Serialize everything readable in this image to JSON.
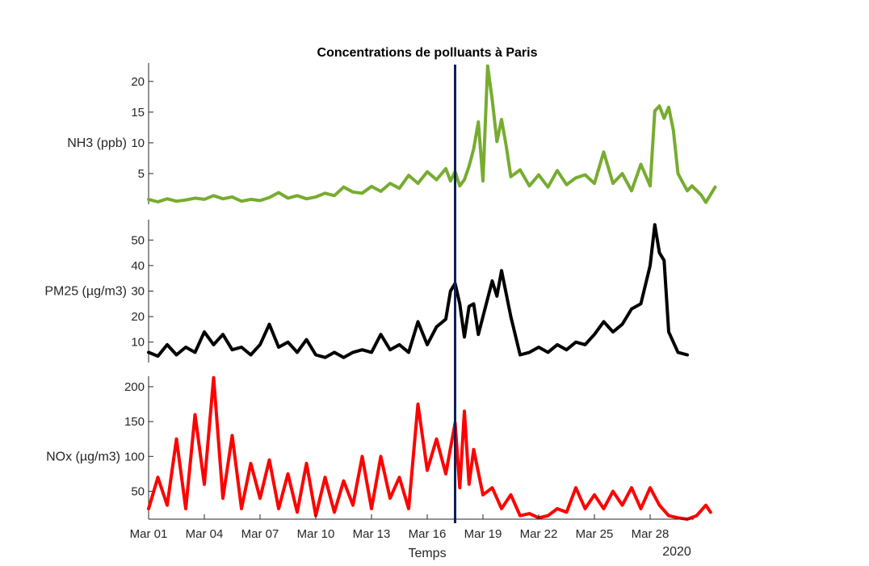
{
  "chart_data": {
    "type": "line",
    "title": "Concentrations de polluants à Paris",
    "xlabel": "Temps",
    "year_label": "2020",
    "x_ticks": [
      "Mar 01",
      "Mar 04",
      "Mar 07",
      "Mar 10",
      "Mar 13",
      "Mar 16",
      "Mar 19",
      "Mar 22",
      "Mar 25",
      "Mar 28"
    ],
    "x_range": [
      "2020-03-01",
      "2020-03-31"
    ],
    "event_date": "2020-03-17T12:00",
    "event_color": "#0b2155",
    "panels": [
      {
        "ylabel": "NH3 (ppb)",
        "color": "#77ac30",
        "ylim": [
          0,
          23
        ],
        "yticks": [
          5,
          10,
          15,
          20
        ],
        "series": [
          {
            "x": "2020-03-01T00:00",
            "y": 0.8
          },
          {
            "x": "2020-03-01T12:00",
            "y": 0.4
          },
          {
            "x": "2020-03-02T00:00",
            "y": 0.9
          },
          {
            "x": "2020-03-02T12:00",
            "y": 0.5
          },
          {
            "x": "2020-03-03T00:00",
            "y": 0.7
          },
          {
            "x": "2020-03-03T12:00",
            "y": 1.0
          },
          {
            "x": "2020-03-04T00:00",
            "y": 0.8
          },
          {
            "x": "2020-03-04T12:00",
            "y": 1.4
          },
          {
            "x": "2020-03-05T00:00",
            "y": 0.9
          },
          {
            "x": "2020-03-05T12:00",
            "y": 1.2
          },
          {
            "x": "2020-03-06T00:00",
            "y": 0.5
          },
          {
            "x": "2020-03-06T12:00",
            "y": 0.8
          },
          {
            "x": "2020-03-07T00:00",
            "y": 0.6
          },
          {
            "x": "2020-03-07T12:00",
            "y": 1.1
          },
          {
            "x": "2020-03-08T00:00",
            "y": 1.9
          },
          {
            "x": "2020-03-08T12:00",
            "y": 1.0
          },
          {
            "x": "2020-03-09T00:00",
            "y": 1.4
          },
          {
            "x": "2020-03-09T12:00",
            "y": 0.9
          },
          {
            "x": "2020-03-10T00:00",
            "y": 1.2
          },
          {
            "x": "2020-03-10T12:00",
            "y": 1.8
          },
          {
            "x": "2020-03-11T00:00",
            "y": 1.4
          },
          {
            "x": "2020-03-11T12:00",
            "y": 2.8
          },
          {
            "x": "2020-03-12T00:00",
            "y": 2.0
          },
          {
            "x": "2020-03-12T12:00",
            "y": 1.8
          },
          {
            "x": "2020-03-13T00:00",
            "y": 2.9
          },
          {
            "x": "2020-03-13T12:00",
            "y": 2.1
          },
          {
            "x": "2020-03-14T00:00",
            "y": 3.4
          },
          {
            "x": "2020-03-14T12:00",
            "y": 2.6
          },
          {
            "x": "2020-03-15T00:00",
            "y": 4.7
          },
          {
            "x": "2020-03-15T12:00",
            "y": 3.4
          },
          {
            "x": "2020-03-16T00:00",
            "y": 5.3
          },
          {
            "x": "2020-03-16T12:00",
            "y": 4.0
          },
          {
            "x": "2020-03-17T00:00",
            "y": 5.8
          },
          {
            "x": "2020-03-17T06:00",
            "y": 3.8
          },
          {
            "x": "2020-03-17T12:00",
            "y": 5.3
          },
          {
            "x": "2020-03-17T18:00",
            "y": 3.0
          },
          {
            "x": "2020-03-18T00:00",
            "y": 4.0
          },
          {
            "x": "2020-03-18T06:00",
            "y": 6.2
          },
          {
            "x": "2020-03-18T12:00",
            "y": 9.0
          },
          {
            "x": "2020-03-18T18:00",
            "y": 13.4
          },
          {
            "x": "2020-03-19T00:00",
            "y": 3.8
          },
          {
            "x": "2020-03-19T06:00",
            "y": 22.5
          },
          {
            "x": "2020-03-19T12:00",
            "y": 17.0
          },
          {
            "x": "2020-03-19T18:00",
            "y": 10.2
          },
          {
            "x": "2020-03-20T00:00",
            "y": 13.8
          },
          {
            "x": "2020-03-20T06:00",
            "y": 9.5
          },
          {
            "x": "2020-03-20T12:00",
            "y": 4.5
          },
          {
            "x": "2020-03-21T00:00",
            "y": 5.6
          },
          {
            "x": "2020-03-21T12:00",
            "y": 3.0
          },
          {
            "x": "2020-03-22T00:00",
            "y": 4.8
          },
          {
            "x": "2020-03-22T12:00",
            "y": 2.8
          },
          {
            "x": "2020-03-23T00:00",
            "y": 5.5
          },
          {
            "x": "2020-03-23T12:00",
            "y": 3.2
          },
          {
            "x": "2020-03-24T00:00",
            "y": 4.3
          },
          {
            "x": "2020-03-24T12:00",
            "y": 4.8
          },
          {
            "x": "2020-03-25T00:00",
            "y": 3.4
          },
          {
            "x": "2020-03-25T12:00",
            "y": 8.5
          },
          {
            "x": "2020-03-26T00:00",
            "y": 3.4
          },
          {
            "x": "2020-03-26T12:00",
            "y": 5.0
          },
          {
            "x": "2020-03-27T00:00",
            "y": 2.2
          },
          {
            "x": "2020-03-27T12:00",
            "y": 6.5
          },
          {
            "x": "2020-03-28T00:00",
            "y": 3.0
          },
          {
            "x": "2020-03-28T06:00",
            "y": 15.2
          },
          {
            "x": "2020-03-28T12:00",
            "y": 16.0
          },
          {
            "x": "2020-03-28T18:00",
            "y": 14.0
          },
          {
            "x": "2020-03-29T00:00",
            "y": 15.8
          },
          {
            "x": "2020-03-29T06:00",
            "y": 12.0
          },
          {
            "x": "2020-03-29T12:00",
            "y": 5.0
          },
          {
            "x": "2020-03-30T00:00",
            "y": 2.2
          },
          {
            "x": "2020-03-30T06:00",
            "y": 3.0
          },
          {
            "x": "2020-03-30T18:00",
            "y": 1.5
          },
          {
            "x": "2020-03-31T00:00",
            "y": 0.3
          },
          {
            "x": "2020-03-31T12:00",
            "y": 2.8
          }
        ]
      },
      {
        "ylabel": "PM25 (µg/m3)",
        "color": "#000000",
        "ylim": [
          2,
          58
        ],
        "yticks": [
          10,
          20,
          30,
          40,
          50
        ],
        "series": [
          {
            "x": "2020-03-01T00:00",
            "y": 6
          },
          {
            "x": "2020-03-01T12:00",
            "y": 4.5
          },
          {
            "x": "2020-03-02T00:00",
            "y": 9
          },
          {
            "x": "2020-03-02T12:00",
            "y": 5
          },
          {
            "x": "2020-03-03T00:00",
            "y": 8
          },
          {
            "x": "2020-03-03T12:00",
            "y": 6
          },
          {
            "x": "2020-03-04T00:00",
            "y": 14
          },
          {
            "x": "2020-03-04T12:00",
            "y": 9
          },
          {
            "x": "2020-03-05T00:00",
            "y": 13
          },
          {
            "x": "2020-03-05T12:00",
            "y": 7
          },
          {
            "x": "2020-03-06T00:00",
            "y": 8
          },
          {
            "x": "2020-03-06T12:00",
            "y": 5
          },
          {
            "x": "2020-03-07T00:00",
            "y": 9
          },
          {
            "x": "2020-03-07T12:00",
            "y": 17
          },
          {
            "x": "2020-03-08T00:00",
            "y": 8
          },
          {
            "x": "2020-03-08T12:00",
            "y": 10
          },
          {
            "x": "2020-03-09T00:00",
            "y": 6
          },
          {
            "x": "2020-03-09T12:00",
            "y": 11
          },
          {
            "x": "2020-03-10T00:00",
            "y": 5
          },
          {
            "x": "2020-03-10T12:00",
            "y": 4
          },
          {
            "x": "2020-03-11T00:00",
            "y": 6
          },
          {
            "x": "2020-03-11T12:00",
            "y": 4
          },
          {
            "x": "2020-03-12T00:00",
            "y": 6
          },
          {
            "x": "2020-03-12T12:00",
            "y": 7
          },
          {
            "x": "2020-03-13T00:00",
            "y": 6
          },
          {
            "x": "2020-03-13T12:00",
            "y": 13
          },
          {
            "x": "2020-03-14T00:00",
            "y": 7
          },
          {
            "x": "2020-03-14T12:00",
            "y": 9
          },
          {
            "x": "2020-03-15T00:00",
            "y": 6
          },
          {
            "x": "2020-03-15T12:00",
            "y": 18
          },
          {
            "x": "2020-03-16T00:00",
            "y": 9
          },
          {
            "x": "2020-03-16T12:00",
            "y": 16
          },
          {
            "x": "2020-03-17T00:00",
            "y": 19
          },
          {
            "x": "2020-03-17T06:00",
            "y": 30
          },
          {
            "x": "2020-03-17T12:00",
            "y": 33
          },
          {
            "x": "2020-03-17T18:00",
            "y": 25
          },
          {
            "x": "2020-03-18T00:00",
            "y": 12
          },
          {
            "x": "2020-03-18T06:00",
            "y": 24
          },
          {
            "x": "2020-03-18T12:00",
            "y": 25
          },
          {
            "x": "2020-03-18T18:00",
            "y": 13
          },
          {
            "x": "2020-03-19T00:00",
            "y": 20
          },
          {
            "x": "2020-03-19T12:00",
            "y": 34
          },
          {
            "x": "2020-03-19T18:00",
            "y": 28
          },
          {
            "x": "2020-03-20T00:00",
            "y": 38
          },
          {
            "x": "2020-03-20T12:00",
            "y": 20
          },
          {
            "x": "2020-03-21T00:00",
            "y": 5
          },
          {
            "x": "2020-03-21T12:00",
            "y": 6
          },
          {
            "x": "2020-03-22T00:00",
            "y": 8
          },
          {
            "x": "2020-03-22T12:00",
            "y": 6
          },
          {
            "x": "2020-03-23T00:00",
            "y": 9
          },
          {
            "x": "2020-03-23T12:00",
            "y": 7
          },
          {
            "x": "2020-03-24T00:00",
            "y": 10
          },
          {
            "x": "2020-03-24T12:00",
            "y": 9
          },
          {
            "x": "2020-03-25T00:00",
            "y": 13
          },
          {
            "x": "2020-03-25T12:00",
            "y": 18
          },
          {
            "x": "2020-03-26T00:00",
            "y": 14
          },
          {
            "x": "2020-03-26T12:00",
            "y": 17
          },
          {
            "x": "2020-03-27T00:00",
            "y": 23
          },
          {
            "x": "2020-03-27T12:00",
            "y": 25
          },
          {
            "x": "2020-03-28T00:00",
            "y": 40
          },
          {
            "x": "2020-03-28T06:00",
            "y": 56
          },
          {
            "x": "2020-03-28T12:00",
            "y": 45
          },
          {
            "x": "2020-03-28T18:00",
            "y": 42
          },
          {
            "x": "2020-03-29T00:00",
            "y": 14
          },
          {
            "x": "2020-03-29T12:00",
            "y": 6
          },
          {
            "x": "2020-03-30T00:00",
            "y": 5
          }
        ]
      },
      {
        "ylabel": "NOx (µg/m3)",
        "color": "#ff0000",
        "ylim": [
          10,
          215
        ],
        "yticks": [
          50,
          100,
          150,
          200
        ],
        "series": [
          {
            "x": "2020-03-01T00:00",
            "y": 25
          },
          {
            "x": "2020-03-01T12:00",
            "y": 70
          },
          {
            "x": "2020-03-02T00:00",
            "y": 30
          },
          {
            "x": "2020-03-02T12:00",
            "y": 125
          },
          {
            "x": "2020-03-03T00:00",
            "y": 25
          },
          {
            "x": "2020-03-03T12:00",
            "y": 160
          },
          {
            "x": "2020-03-04T00:00",
            "y": 60
          },
          {
            "x": "2020-03-04T12:00",
            "y": 213
          },
          {
            "x": "2020-03-05T00:00",
            "y": 40
          },
          {
            "x": "2020-03-05T12:00",
            "y": 130
          },
          {
            "x": "2020-03-06T00:00",
            "y": 25
          },
          {
            "x": "2020-03-06T12:00",
            "y": 90
          },
          {
            "x": "2020-03-07T00:00",
            "y": 40
          },
          {
            "x": "2020-03-07T12:00",
            "y": 95
          },
          {
            "x": "2020-03-08T00:00",
            "y": 25
          },
          {
            "x": "2020-03-08T12:00",
            "y": 75
          },
          {
            "x": "2020-03-09T00:00",
            "y": 20
          },
          {
            "x": "2020-03-09T12:00",
            "y": 90
          },
          {
            "x": "2020-03-10T00:00",
            "y": 15
          },
          {
            "x": "2020-03-10T12:00",
            "y": 70
          },
          {
            "x": "2020-03-11T00:00",
            "y": 20
          },
          {
            "x": "2020-03-11T12:00",
            "y": 65
          },
          {
            "x": "2020-03-12T00:00",
            "y": 30
          },
          {
            "x": "2020-03-12T12:00",
            "y": 100
          },
          {
            "x": "2020-03-13T00:00",
            "y": 25
          },
          {
            "x": "2020-03-13T12:00",
            "y": 100
          },
          {
            "x": "2020-03-14T00:00",
            "y": 40
          },
          {
            "x": "2020-03-14T12:00",
            "y": 70
          },
          {
            "x": "2020-03-15T00:00",
            "y": 25
          },
          {
            "x": "2020-03-15T12:00",
            "y": 175
          },
          {
            "x": "2020-03-16T00:00",
            "y": 80
          },
          {
            "x": "2020-03-16T12:00",
            "y": 125
          },
          {
            "x": "2020-03-17T00:00",
            "y": 75
          },
          {
            "x": "2020-03-17T12:00",
            "y": 148
          },
          {
            "x": "2020-03-17T18:00",
            "y": 55
          },
          {
            "x": "2020-03-18T00:00",
            "y": 165
          },
          {
            "x": "2020-03-18T06:00",
            "y": 60
          },
          {
            "x": "2020-03-18T12:00",
            "y": 110
          },
          {
            "x": "2020-03-19T00:00",
            "y": 45
          },
          {
            "x": "2020-03-19T12:00",
            "y": 55
          },
          {
            "x": "2020-03-20T00:00",
            "y": 25
          },
          {
            "x": "2020-03-20T12:00",
            "y": 45
          },
          {
            "x": "2020-03-21T00:00",
            "y": 15
          },
          {
            "x": "2020-03-21T12:00",
            "y": 18
          },
          {
            "x": "2020-03-22T00:00",
            "y": 12
          },
          {
            "x": "2020-03-22T12:00",
            "y": 15
          },
          {
            "x": "2020-03-23T00:00",
            "y": 25
          },
          {
            "x": "2020-03-23T12:00",
            "y": 20
          },
          {
            "x": "2020-03-24T00:00",
            "y": 55
          },
          {
            "x": "2020-03-24T12:00",
            "y": 25
          },
          {
            "x": "2020-03-25T00:00",
            "y": 45
          },
          {
            "x": "2020-03-25T12:00",
            "y": 25
          },
          {
            "x": "2020-03-26T00:00",
            "y": 50
          },
          {
            "x": "2020-03-26T12:00",
            "y": 30
          },
          {
            "x": "2020-03-27T00:00",
            "y": 55
          },
          {
            "x": "2020-03-27T12:00",
            "y": 25
          },
          {
            "x": "2020-03-28T00:00",
            "y": 55
          },
          {
            "x": "2020-03-28T12:00",
            "y": 30
          },
          {
            "x": "2020-03-29T00:00",
            "y": 15
          },
          {
            "x": "2020-03-29T12:00",
            "y": 12
          },
          {
            "x": "2020-03-30T00:00",
            "y": 10
          },
          {
            "x": "2020-03-30T12:00",
            "y": 15
          },
          {
            "x": "2020-03-31T00:00",
            "y": 30
          },
          {
            "x": "2020-03-31T06:00",
            "y": 20
          }
        ]
      }
    ]
  }
}
